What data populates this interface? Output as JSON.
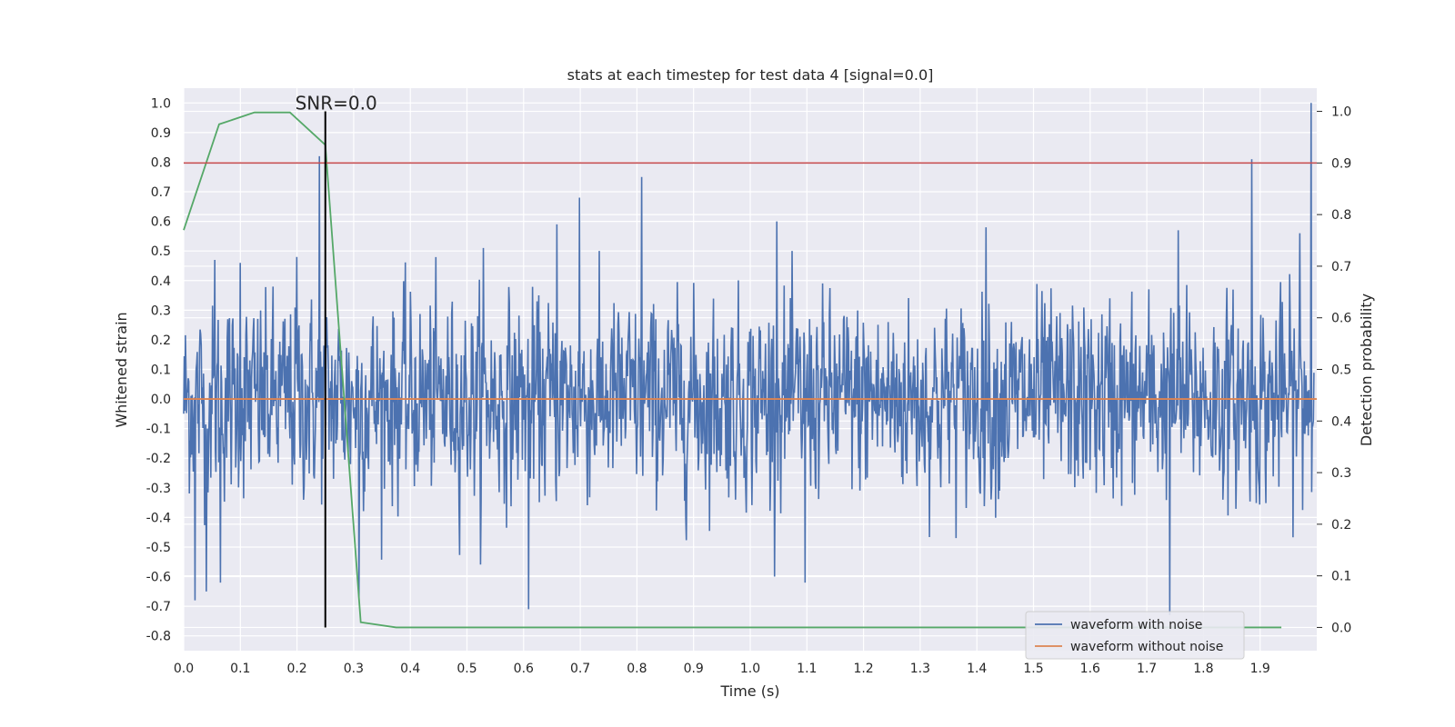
{
  "chart_data": {
    "type": "line",
    "title": "stats at each timestep for test data 4 [signal=0.0]",
    "xlabel": "Time (s)",
    "ylabel": "Whitened strain",
    "ylabel_right": "Detection probability",
    "xlim": [
      0.0,
      2.0
    ],
    "ylim": [
      -0.85,
      1.05
    ],
    "ylim_right": [
      -0.045,
      1.045
    ],
    "x_ticks": [
      "0.0",
      "0.1",
      "0.2",
      "0.3",
      "0.4",
      "0.5",
      "0.6",
      "0.7",
      "0.8",
      "0.9",
      "1.0",
      "1.1",
      "1.2",
      "1.3",
      "1.4",
      "1.5",
      "1.6",
      "1.7",
      "1.8",
      "1.9"
    ],
    "y_ticks": [
      "1.0",
      "0.9",
      "0.8",
      "0.7",
      "0.6",
      "0.5",
      "0.4",
      "0.3",
      "0.2",
      "0.1",
      "0.0",
      "-0.1",
      "-0.2",
      "-0.3",
      "-0.4",
      "-0.5",
      "-0.6",
      "-0.7",
      "-0.8"
    ],
    "y_ticks_right": [
      "1.0",
      "0.9",
      "0.8",
      "0.7",
      "0.6",
      "0.5",
      "0.4",
      "0.3",
      "0.2",
      "0.1",
      "0.0"
    ],
    "grid": true,
    "legend_position": "lower-right",
    "series": [
      {
        "name": "waveform with noise",
        "axis": "left",
        "color": "#4c72b0",
        "description_values": "dense noise oscillating roughly between -0.7 and 0.8, spike to 1.0 at x=1.995",
        "x_range": [
          0.0,
          2.0
        ],
        "peaks": [
          {
            "x": 0.02,
            "y": 0.53
          },
          {
            "x": 0.055,
            "y": 0.47
          },
          {
            "x": 0.1,
            "y": 0.46
          },
          {
            "x": 0.2,
            "y": 0.48
          },
          {
            "x": 0.24,
            "y": 0.82
          },
          {
            "x": 0.53,
            "y": 0.51
          },
          {
            "x": 0.66,
            "y": 0.59
          },
          {
            "x": 0.7,
            "y": 0.68
          },
          {
            "x": 0.81,
            "y": 0.75
          },
          {
            "x": 1.05,
            "y": 0.6
          },
          {
            "x": 1.42,
            "y": 0.58
          },
          {
            "x": 1.76,
            "y": 0.57
          },
          {
            "x": 1.89,
            "y": 0.81
          },
          {
            "x": 1.975,
            "y": 0.56
          },
          {
            "x": 1.995,
            "y": 1.0
          }
        ],
        "troughs": [
          {
            "x": 0.02,
            "y": -0.68
          },
          {
            "x": 0.04,
            "y": -0.65
          },
          {
            "x": 0.065,
            "y": -0.62
          },
          {
            "x": 0.31,
            "y": -0.67
          },
          {
            "x": 0.61,
            "y": -0.71
          },
          {
            "x": 1.1,
            "y": -0.62
          },
          {
            "x": 1.745,
            "y": -0.73
          }
        ]
      },
      {
        "name": "waveform without noise",
        "axis": "left",
        "color": "#dd8452",
        "x": [
          0.0,
          2.0
        ],
        "y": [
          0.0,
          0.0
        ]
      },
      {
        "name": "",
        "axis": "right",
        "color": "#55a868",
        "x": [
          0.0,
          0.0625,
          0.125,
          0.1875,
          0.25,
          0.3125,
          0.375,
          0.4375,
          0.5,
          0.5625,
          0.625,
          0.6875,
          0.75,
          0.8125,
          0.875,
          0.9375,
          1.0,
          1.0625,
          1.125,
          1.1875,
          1.25,
          1.3125,
          1.375,
          1.4375,
          1.5,
          1.5625,
          1.625,
          1.6875,
          1.75,
          1.8125,
          1.875,
          1.9375
        ],
        "y": [
          0.77,
          0.975,
          0.998,
          0.998,
          0.935,
          0.01,
          0.0,
          0.0,
          0.0,
          0.0,
          0.0,
          0.0,
          0.0,
          0.0,
          0.0,
          0.0,
          0.0,
          0.0,
          0.0,
          0.0,
          0.0,
          0.0,
          0.0,
          0.0,
          0.0,
          0.0,
          0.0,
          0.0,
          0.0,
          0.0,
          0.0,
          0.0
        ]
      }
    ],
    "annotations": [
      {
        "type": "hline",
        "axis": "right",
        "y": 0.9,
        "color": "#c44e52"
      },
      {
        "type": "vline",
        "x": 0.25,
        "color": "#000000",
        "y_from": 0.0,
        "y_to": 1.0,
        "axis": "right"
      },
      {
        "type": "text",
        "text": "SNR=0.0",
        "x": 0.2,
        "y": 1.0,
        "axis": "right"
      }
    ],
    "legend": [
      "waveform with noise",
      "waveform without noise"
    ]
  }
}
